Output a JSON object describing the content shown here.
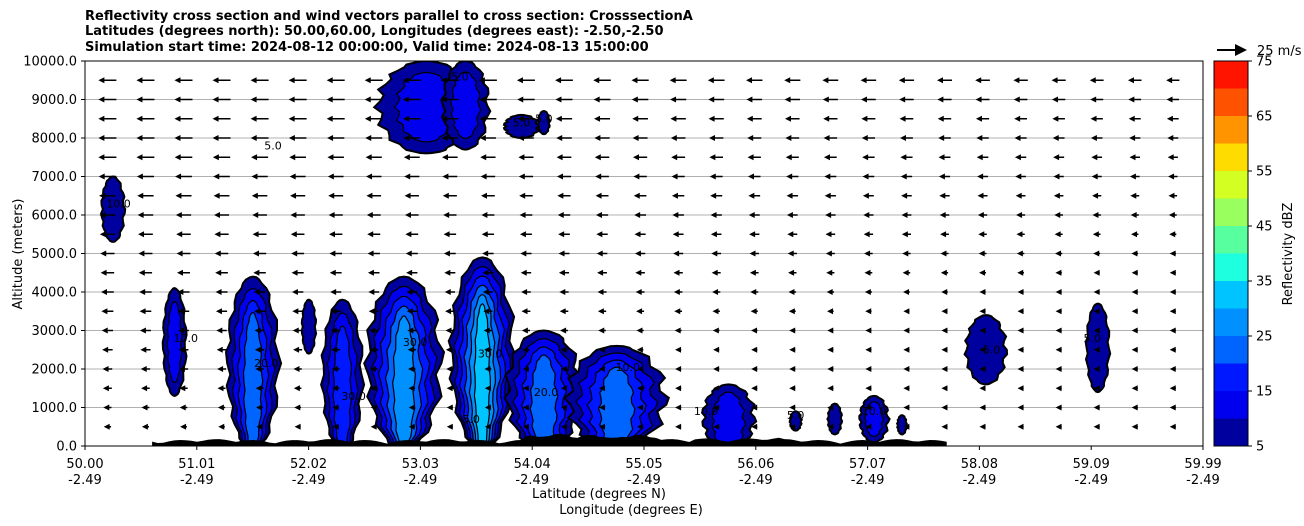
{
  "chart_data": {
    "type": "heatmap",
    "title_lines": [
      "Reflectivity cross section and wind vectors parallel to cross section: CrosssectionA",
      "Latitudes (degrees north): 50.00,60.00, Longitudes (degrees east): -2.50,-2.50",
      "Simulation start time: 2024-08-12 00:00:00, Valid time: 2024-08-13 15:00:00"
    ],
    "xlabel": "Latitude (degrees N)",
    "xlabel2": "Longitude (degrees E)",
    "ylabel": "Altitude (meters)",
    "xlim": [
      50.0,
      59.99
    ],
    "ylim": [
      0,
      10000
    ],
    "x_ticks": [
      {
        "lat": "50.00",
        "lon": "-2.49"
      },
      {
        "lat": "51.01",
        "lon": "-2.49"
      },
      {
        "lat": "52.02",
        "lon": "-2.49"
      },
      {
        "lat": "53.03",
        "lon": "-2.49"
      },
      {
        "lat": "54.04",
        "lon": "-2.49"
      },
      {
        "lat": "55.05",
        "lon": "-2.49"
      },
      {
        "lat": "56.06",
        "lon": "-2.49"
      },
      {
        "lat": "57.07",
        "lon": "-2.49"
      },
      {
        "lat": "58.08",
        "lon": "-2.49"
      },
      {
        "lat": "59.09",
        "lon": "-2.49"
      },
      {
        "lat": "59.99",
        "lon": "-2.49"
      }
    ],
    "y_ticks": [
      "0.0",
      "1000.0",
      "2000.0",
      "3000.0",
      "4000.0",
      "5000.0",
      "6000.0",
      "7000.0",
      "8000.0",
      "9000.0",
      "10000.0"
    ],
    "grid": "horizontal",
    "colorbar": {
      "label": "Reflectivity dBZ",
      "levels": [
        5,
        10,
        15,
        20,
        25,
        30,
        35,
        40,
        45,
        50,
        55,
        60,
        65,
        70,
        75
      ],
      "tick_labels": [
        "5",
        "15",
        "25",
        "35",
        "45",
        "55",
        "65",
        "75"
      ],
      "colors": [
        "#00009f",
        "#0000ee",
        "#0018ff",
        "#0064ff",
        "#0090ff",
        "#00c4ff",
        "#1effe0",
        "#57ff9f",
        "#98ff5e",
        "#d4ff23",
        "#ffdc00",
        "#ff9400",
        "#ff5200",
        "#ff1400",
        "#a80000"
      ]
    },
    "wind_key": {
      "label": "25 m/s",
      "value": 25
    },
    "contour_labels": [
      "5.0",
      "10.0",
      "20.0",
      "30.0"
    ],
    "cells": [
      {
        "lat": 50.25,
        "top": 7000,
        "bottom": 5300,
        "width": 0.2,
        "max_dbz": 7
      },
      {
        "lat": 50.8,
        "top": 4100,
        "bottom": 1300,
        "width": 0.2,
        "max_dbz": 12
      },
      {
        "lat": 51.5,
        "top": 4400,
        "bottom": 0,
        "width": 0.45,
        "max_dbz": 22
      },
      {
        "lat": 52.0,
        "top": 3800,
        "bottom": 2400,
        "width": 0.12,
        "max_dbz": 9
      },
      {
        "lat": 52.3,
        "top": 3800,
        "bottom": 0,
        "width": 0.35,
        "max_dbz": 18
      },
      {
        "lat": 52.85,
        "top": 4400,
        "bottom": 0,
        "width": 0.65,
        "max_dbz": 25
      },
      {
        "lat": 53.55,
        "top": 4900,
        "bottom": 0,
        "width": 0.55,
        "max_dbz": 34
      },
      {
        "lat": 54.1,
        "top": 3000,
        "bottom": 0,
        "width": 0.65,
        "max_dbz": 22
      },
      {
        "lat": 54.75,
        "top": 2600,
        "bottom": 0,
        "width": 0.85,
        "max_dbz": 20
      },
      {
        "lat": 55.75,
        "top": 1600,
        "bottom": 0,
        "width": 0.45,
        "max_dbz": 14
      },
      {
        "lat": 56.35,
        "top": 900,
        "bottom": 400,
        "width": 0.1,
        "max_dbz": 7
      },
      {
        "lat": 56.7,
        "top": 1100,
        "bottom": 300,
        "width": 0.12,
        "max_dbz": 8
      },
      {
        "lat": 57.05,
        "top": 1300,
        "bottom": 100,
        "width": 0.25,
        "max_dbz": 14
      },
      {
        "lat": 57.3,
        "top": 800,
        "bottom": 300,
        "width": 0.08,
        "max_dbz": 6
      },
      {
        "lat": 58.05,
        "top": 3400,
        "bottom": 1600,
        "width": 0.35,
        "max_dbz": 9
      },
      {
        "lat": 59.05,
        "top": 3700,
        "bottom": 1400,
        "width": 0.2,
        "max_dbz": 9
      },
      {
        "lat": 53.05,
        "top": 10000,
        "bottom": 7600,
        "width": 0.85,
        "max_dbz": 10
      },
      {
        "lat": 53.4,
        "top": 10000,
        "bottom": 7700,
        "width": 0.4,
        "max_dbz": 12
      },
      {
        "lat": 53.9,
        "top": 8600,
        "bottom": 8000,
        "width": 0.3,
        "max_dbz": 8
      },
      {
        "lat": 54.1,
        "top": 8700,
        "bottom": 8100,
        "width": 0.1,
        "max_dbz": 6
      }
    ]
  }
}
